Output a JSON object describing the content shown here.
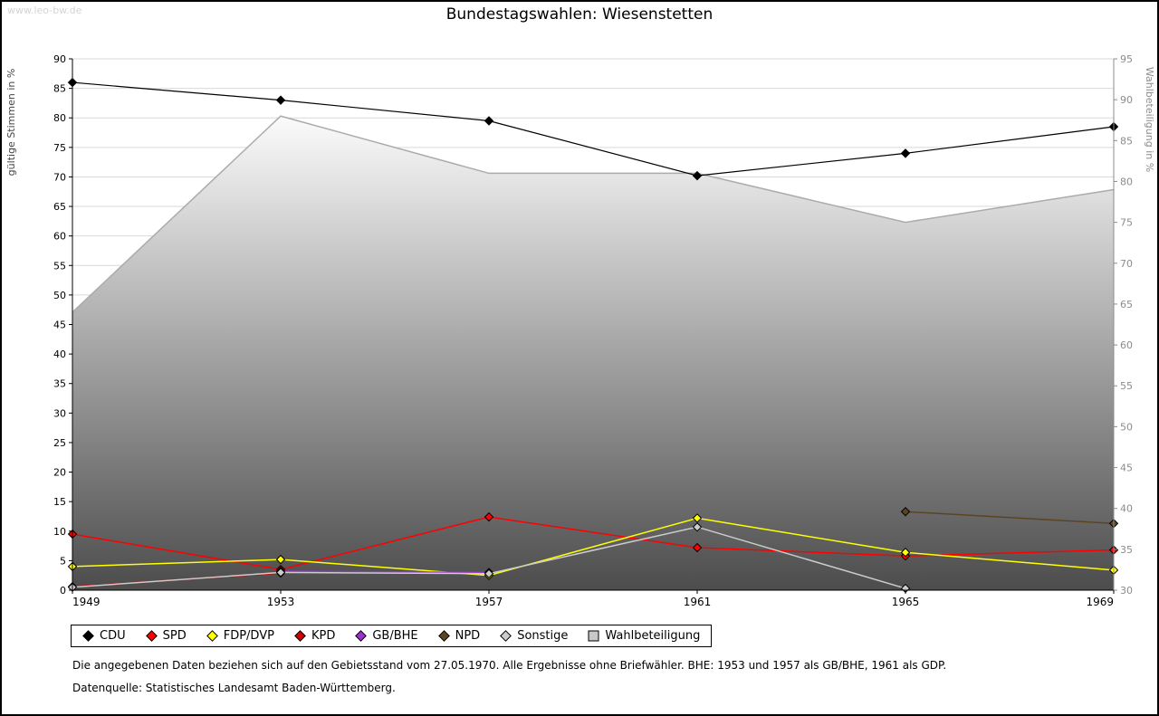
{
  "watermark": "www.leo-bw.de",
  "title": "Bundestagswahlen: Wiesenstetten",
  "footnotes": {
    "line1": "Die angegebenen Daten beziehen sich auf den Gebietsstand vom 27.05.1970. Alle Ergebnisse ohne Briefwähler. BHE: 1953 und 1957 als GB/BHE, 1961 als GDP.",
    "line2": "Datenquelle: Statistisches Landesamt Baden-Württemberg."
  },
  "chart_data": {
    "type": "line",
    "title": "Bundestagswahlen: Wiesenstetten",
    "x": [
      1949,
      1953,
      1957,
      1961,
      1965,
      1969
    ],
    "grid": true,
    "legend_position": "bottom",
    "left_axis": {
      "label": "gültige Stimmen in %",
      "min": 0,
      "max": 90,
      "step": 5
    },
    "right_axis": {
      "label": "Wahlbeteiligung in %",
      "min": 30,
      "max": 95,
      "step": 5
    },
    "series": [
      {
        "name": "CDU",
        "color": "#000000",
        "axis": "left",
        "type": "line",
        "values": [
          86,
          83,
          79.5,
          70.2,
          74,
          78.5
        ]
      },
      {
        "name": "SPD",
        "color": "#ff0000",
        "axis": "left",
        "type": "line",
        "values": [
          9.5,
          3.5,
          12.4,
          7.2,
          5.8,
          6.8
        ]
      },
      {
        "name": "FDP/DVP",
        "color": "#ffff00",
        "axis": "left",
        "type": "line",
        "values": [
          4.0,
          5.2,
          2.5,
          12.2,
          6.4,
          3.4
        ]
      },
      {
        "name": "KPD",
        "color": "#cc0000",
        "axis": "left",
        "type": "line",
        "values": [
          0.6,
          2.9,
          null,
          null,
          null,
          null
        ]
      },
      {
        "name": "GB/BHE",
        "color": "#9933cc",
        "axis": "left",
        "type": "line",
        "values": [
          null,
          3.2,
          3.0,
          null,
          null,
          null
        ]
      },
      {
        "name": "NPD",
        "color": "#5c4423",
        "axis": "left",
        "type": "line",
        "values": [
          null,
          null,
          null,
          null,
          13.3,
          11.3
        ]
      },
      {
        "name": "Sonstige",
        "color": "#cccccc",
        "axis": "left",
        "type": "line",
        "values": [
          0.5,
          3.0,
          2.8,
          10.7,
          0.3,
          null
        ]
      },
      {
        "name": "Wahlbeteiligung",
        "color": "#c8c8c8",
        "axis": "right",
        "type": "area",
        "values": [
          64,
          88,
          81,
          81,
          75,
          79
        ]
      }
    ],
    "area_gradient": {
      "top": "#fbfbfb",
      "bottom": "#4c4c4c"
    }
  }
}
